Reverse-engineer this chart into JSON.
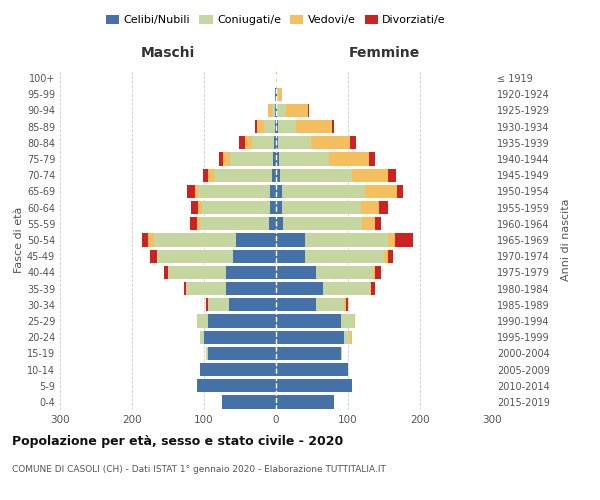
{
  "age_groups_bottom_to_top": [
    "0-4",
    "5-9",
    "10-14",
    "15-19",
    "20-24",
    "25-29",
    "30-34",
    "35-39",
    "40-44",
    "45-49",
    "50-54",
    "55-59",
    "60-64",
    "65-69",
    "70-74",
    "75-79",
    "80-84",
    "85-89",
    "90-94",
    "95-99",
    "100+"
  ],
  "birth_years_bottom_to_top": [
    "2015-2019",
    "2010-2014",
    "2005-2009",
    "2000-2004",
    "1995-1999",
    "1990-1994",
    "1985-1989",
    "1980-1984",
    "1975-1979",
    "1970-1974",
    "1965-1969",
    "1960-1964",
    "1955-1959",
    "1950-1954",
    "1945-1949",
    "1940-1944",
    "1935-1939",
    "1930-1934",
    "1925-1929",
    "1920-1924",
    "≤ 1919"
  ],
  "maschi": {
    "celibi": [
      75,
      110,
      105,
      95,
      100,
      95,
      65,
      70,
      70,
      60,
      55,
      10,
      8,
      8,
      6,
      4,
      3,
      2,
      1,
      1,
      0
    ],
    "coniugati": [
      0,
      0,
      0,
      2,
      5,
      15,
      30,
      55,
      80,
      105,
      115,
      95,
      95,
      100,
      80,
      60,
      30,
      15,
      5,
      1,
      0
    ],
    "vedovi": [
      0,
      0,
      0,
      0,
      0,
      0,
      0,
      0,
      0,
      0,
      8,
      5,
      5,
      5,
      8,
      10,
      10,
      10,
      5,
      0,
      0
    ],
    "divorziati": [
      0,
      0,
      0,
      0,
      0,
      0,
      2,
      3,
      5,
      10,
      8,
      10,
      10,
      10,
      8,
      5,
      8,
      2,
      0,
      0,
      0
    ]
  },
  "femmine": {
    "nubili": [
      80,
      105,
      100,
      90,
      95,
      90,
      55,
      65,
      55,
      40,
      40,
      10,
      8,
      8,
      5,
      4,
      3,
      3,
      2,
      1,
      0
    ],
    "coniugate": [
      0,
      0,
      0,
      2,
      8,
      18,
      40,
      65,
      80,
      110,
      115,
      110,
      110,
      115,
      100,
      70,
      45,
      25,
      12,
      2,
      0
    ],
    "vedove": [
      0,
      0,
      0,
      0,
      2,
      2,
      2,
      2,
      3,
      5,
      10,
      18,
      25,
      45,
      50,
      55,
      55,
      50,
      30,
      5,
      1
    ],
    "divorziate": [
      0,
      0,
      0,
      0,
      0,
      0,
      3,
      5,
      8,
      8,
      25,
      8,
      12,
      8,
      12,
      8,
      8,
      2,
      2,
      0,
      0
    ]
  },
  "colors": {
    "celibi": "#4472a8",
    "coniugati": "#c5d6a0",
    "vedovi": "#f5be5e",
    "divorziati": "#cc2222"
  },
  "xlim": 300,
  "title": "Popolazione per età, sesso e stato civile - 2020",
  "subtitle": "COMUNE DI CASOLI (CH) - Dati ISTAT 1° gennaio 2020 - Elaborazione TUTTITALIA.IT",
  "ylabel_left": "Fasce di età",
  "ylabel_right": "Anni di nascita",
  "xlabel_maschi": "Maschi",
  "xlabel_femmine": "Femmine",
  "legend_labels": [
    "Celibi/Nubili",
    "Coniugati/e",
    "Vedovi/e",
    "Divorziati/e"
  ]
}
